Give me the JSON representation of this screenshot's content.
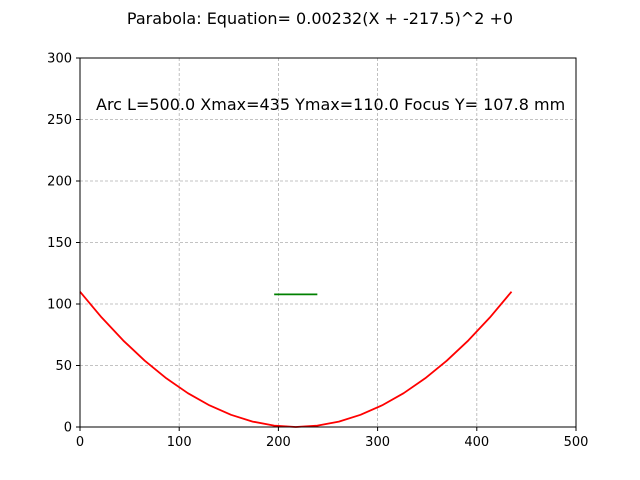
{
  "chart_data": {
    "type": "line",
    "title": "Parabola:  Equation= 0.00232(X + -217.5)^2 +0",
    "annotation": "Arc L=500.0 Xmax=435 Ymax=110.0 Focus Y= 107.8 mm",
    "xlabel": "",
    "ylabel": "",
    "xlim": [
      0,
      500
    ],
    "ylim": [
      0,
      300
    ],
    "xticks": [
      0,
      100,
      200,
      300,
      400,
      500
    ],
    "yticks": [
      0,
      50,
      100,
      150,
      200,
      250,
      300
    ],
    "grid": true,
    "series": [
      {
        "color": "#ff0000",
        "x": [
          0,
          21.75,
          43.5,
          65.25,
          87,
          108.75,
          130.5,
          152.25,
          174,
          195.75,
          217.5,
          239.25,
          261,
          282.75,
          304.5,
          326.25,
          348,
          369.75,
          391.5,
          413.25,
          435
        ],
        "y": [
          110,
          89.1,
          70.4,
          53.9,
          39.6,
          27.5,
          17.6,
          9.9,
          4.4,
          1.1,
          0,
          1.1,
          4.4,
          9.9,
          17.6,
          27.5,
          39.6,
          53.9,
          70.4,
          89.1,
          110
        ]
      },
      {
        "color": "#008000",
        "x": [
          195.75,
          239.25
        ],
        "y": [
          107.8,
          107.8
        ]
      }
    ]
  }
}
